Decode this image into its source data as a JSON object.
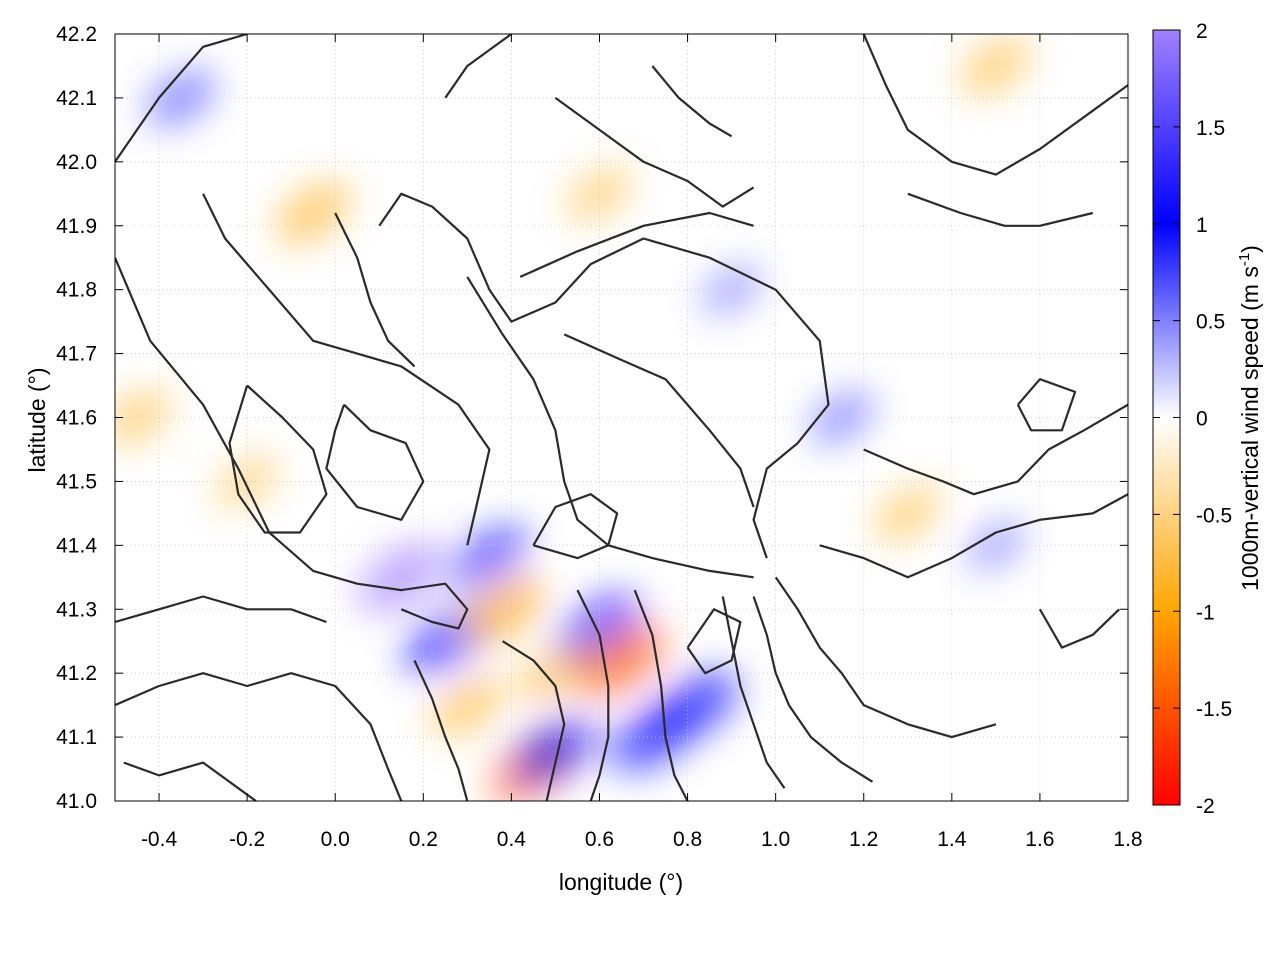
{
  "chart_data": {
    "type": "heatmap",
    "description_scope": "vertical wind speed field at 1000 m with terrain contour overlay",
    "xlabel": "longitude (°)",
    "ylabel": "latitude (°)",
    "xlim": [
      -0.5,
      1.8
    ],
    "ylim": [
      41.0,
      42.2
    ],
    "x_ticks": [
      "-0.4",
      "-0.2",
      "0.0",
      "0.2",
      "0.4",
      "0.6",
      "0.8",
      "1.0",
      "1.2",
      "1.4",
      "1.6",
      "1.8"
    ],
    "x_tick_values": [
      -0.4,
      -0.2,
      0.0,
      0.2,
      0.4,
      0.6,
      0.8,
      1.0,
      1.2,
      1.4,
      1.6,
      1.8
    ],
    "y_ticks": [
      "41.0",
      "41.1",
      "41.2",
      "41.3",
      "41.4",
      "41.5",
      "41.6",
      "41.7",
      "41.8",
      "41.9",
      "42.0",
      "42.1",
      "42.2"
    ],
    "y_tick_values": [
      41.0,
      41.1,
      41.2,
      41.3,
      41.4,
      41.5,
      41.6,
      41.7,
      41.8,
      41.9,
      42.0,
      42.1,
      42.2
    ],
    "grid": true,
    "colorbar": {
      "label_main": "1000m-vertical wind speed (m s",
      "label_sup": "-1",
      "label_end": ")",
      "range": [
        -2,
        2
      ],
      "ticks": [
        "-2",
        "-1.5",
        "-1",
        "-0.5",
        "0",
        "0.5",
        "1",
        "1.5",
        "2"
      ],
      "tick_values": [
        -2,
        -1.5,
        -1,
        -0.5,
        0,
        0.5,
        1,
        1.5,
        2
      ],
      "colors": {
        "-2": "#ff0000",
        "-1": "#ffa500",
        "0": "#ffffff",
        "1": "#0000ff",
        "2": "#a080ff"
      }
    },
    "features": [
      {
        "lon": 0.15,
        "lat": 41.35,
        "w": 1.5
      },
      {
        "lon": 0.25,
        "lat": 41.25,
        "w": 1.3
      },
      {
        "lon": 0.35,
        "lat": 41.38,
        "w": 1.2
      },
      {
        "lon": 0.38,
        "lat": 41.3,
        "w": -1.4
      },
      {
        "lon": 0.45,
        "lat": 41.05,
        "w": -1.5
      },
      {
        "lon": 0.5,
        "lat": 41.08,
        "w": 1.3
      },
      {
        "lon": 0.6,
        "lat": 41.27,
        "w": 1.4
      },
      {
        "lon": 0.65,
        "lat": 41.22,
        "w": -1.6
      },
      {
        "lon": 0.72,
        "lat": 41.1,
        "w": 1.4
      },
      {
        "lon": 0.82,
        "lat": 41.15,
        "w": 1.4
      },
      {
        "lon": 0.3,
        "lat": 41.15,
        "w": -0.9
      },
      {
        "lon": 0.5,
        "lat": 41.2,
        "w": -0.9
      },
      {
        "lon": -0.05,
        "lat": 41.92,
        "w": -1.0
      },
      {
        "lon": -0.35,
        "lat": 42.1,
        "w": 0.7
      },
      {
        "lon": -0.2,
        "lat": 41.5,
        "w": -0.5
      },
      {
        "lon": -0.45,
        "lat": 41.6,
        "w": -0.7
      },
      {
        "lon": 0.6,
        "lat": 41.95,
        "w": -0.6
      },
      {
        "lon": 1.3,
        "lat": 41.45,
        "w": -0.7
      },
      {
        "lon": 1.5,
        "lat": 42.15,
        "w": -0.8
      },
      {
        "lon": 1.15,
        "lat": 41.6,
        "w": 0.5
      },
      {
        "lon": 1.5,
        "lat": 41.4,
        "w": 0.3
      },
      {
        "lon": 0.9,
        "lat": 41.8,
        "w": 0.3
      }
    ],
    "contours": [
      [
        [
          -0.5,
          42.0
        ],
        [
          -0.4,
          42.1
        ],
        [
          -0.3,
          42.18
        ],
        [
          -0.2,
          42.2
        ]
      ],
      [
        [
          -0.5,
          41.85
        ],
        [
          -0.42,
          41.72
        ],
        [
          -0.3,
          41.62
        ],
        [
          -0.22,
          41.52
        ],
        [
          -0.15,
          41.42
        ],
        [
          -0.05,
          41.36
        ],
        [
          0.05,
          41.34
        ],
        [
          0.15,
          41.33
        ],
        [
          0.25,
          41.34
        ],
        [
          0.3,
          41.3
        ],
        [
          0.28,
          41.27
        ],
        [
          0.22,
          41.28
        ],
        [
          0.15,
          41.3
        ]
      ],
      [
        [
          -0.3,
          41.95
        ],
        [
          -0.25,
          41.88
        ],
        [
          -0.15,
          41.8
        ],
        [
          -0.05,
          41.72
        ],
        [
          0.05,
          41.7
        ],
        [
          0.15,
          41.68
        ],
        [
          0.28,
          41.62
        ],
        [
          0.35,
          41.55
        ],
        [
          0.32,
          41.46
        ],
        [
          0.3,
          41.4
        ]
      ],
      [
        [
          0.0,
          41.92
        ],
        [
          0.05,
          41.85
        ],
        [
          0.08,
          41.78
        ],
        [
          0.12,
          41.72
        ],
        [
          0.18,
          41.68
        ]
      ],
      [
        [
          0.1,
          41.9
        ],
        [
          0.15,
          41.95
        ],
        [
          0.22,
          41.93
        ],
        [
          0.3,
          41.88
        ],
        [
          0.35,
          41.8
        ],
        [
          0.4,
          41.75
        ],
        [
          0.5,
          41.78
        ],
        [
          0.58,
          41.84
        ],
        [
          0.7,
          41.88
        ],
        [
          0.85,
          41.85
        ],
        [
          1.0,
          41.8
        ],
        [
          1.1,
          41.72
        ],
        [
          1.12,
          41.62
        ],
        [
          1.05,
          41.56
        ],
        [
          0.98,
          41.52
        ],
        [
          0.95,
          41.44
        ],
        [
          0.98,
          41.38
        ]
      ],
      [
        [
          0.42,
          41.82
        ],
        [
          0.55,
          41.86
        ],
        [
          0.7,
          41.9
        ],
        [
          0.85,
          41.92
        ],
        [
          0.95,
          41.9
        ]
      ],
      [
        [
          0.3,
          41.82
        ],
        [
          0.38,
          41.73
        ],
        [
          0.45,
          41.66
        ],
        [
          0.5,
          41.58
        ],
        [
          0.52,
          41.5
        ],
        [
          0.55,
          41.44
        ],
        [
          0.62,
          41.4
        ],
        [
          0.72,
          41.38
        ],
        [
          0.85,
          41.36
        ],
        [
          0.95,
          41.35
        ]
      ],
      [
        [
          0.52,
          41.73
        ],
        [
          0.65,
          41.69
        ],
        [
          0.75,
          41.66
        ],
        [
          0.85,
          41.58
        ],
        [
          0.92,
          41.52
        ],
        [
          0.95,
          41.46
        ]
      ],
      [
        [
          0.25,
          42.1
        ],
        [
          0.3,
          42.15
        ],
        [
          0.4,
          42.2
        ]
      ],
      [
        [
          0.5,
          42.1
        ],
        [
          0.6,
          42.05
        ],
        [
          0.7,
          42.0
        ],
        [
          0.8,
          41.97
        ],
        [
          0.88,
          41.93
        ],
        [
          0.95,
          41.96
        ]
      ],
      [
        [
          0.72,
          42.15
        ],
        [
          0.78,
          42.1
        ],
        [
          0.85,
          42.06
        ],
        [
          0.9,
          42.04
        ]
      ],
      [
        [
          1.2,
          42.2
        ],
        [
          1.25,
          42.12
        ],
        [
          1.3,
          42.05
        ],
        [
          1.4,
          42.0
        ],
        [
          1.5,
          41.98
        ],
        [
          1.6,
          42.02
        ],
        [
          1.72,
          42.08
        ],
        [
          1.8,
          42.12
        ]
      ],
      [
        [
          1.3,
          41.95
        ],
        [
          1.42,
          41.92
        ],
        [
          1.52,
          41.9
        ],
        [
          1.6,
          41.9
        ],
        [
          1.72,
          41.92
        ]
      ],
      [
        [
          1.2,
          41.55
        ],
        [
          1.3,
          41.52
        ],
        [
          1.38,
          41.5
        ],
        [
          1.45,
          41.48
        ],
        [
          1.55,
          41.5
        ],
        [
          1.62,
          41.55
        ],
        [
          1.7,
          41.58
        ],
        [
          1.8,
          41.62
        ]
      ],
      [
        [
          1.1,
          41.4
        ],
        [
          1.2,
          41.38
        ],
        [
          1.3,
          41.35
        ],
        [
          1.4,
          41.38
        ],
        [
          1.5,
          41.42
        ],
        [
          1.6,
          41.44
        ],
        [
          1.72,
          41.45
        ],
        [
          1.8,
          41.48
        ]
      ],
      [
        [
          1.0,
          41.35
        ],
        [
          1.05,
          41.3
        ],
        [
          1.1,
          41.24
        ],
        [
          1.15,
          41.2
        ],
        [
          1.2,
          41.15
        ],
        [
          1.3,
          41.12
        ],
        [
          1.4,
          41.1
        ],
        [
          1.5,
          41.12
        ]
      ],
      [
        [
          0.95,
          41.32
        ],
        [
          0.98,
          41.26
        ],
        [
          1.0,
          41.2
        ],
        [
          1.03,
          41.15
        ],
        [
          1.08,
          41.1
        ],
        [
          1.15,
          41.06
        ],
        [
          1.22,
          41.03
        ]
      ],
      [
        [
          0.88,
          41.32
        ],
        [
          0.9,
          41.25
        ],
        [
          0.92,
          41.18
        ],
        [
          0.95,
          41.12
        ],
        [
          0.98,
          41.06
        ],
        [
          1.02,
          41.02
        ]
      ],
      [
        [
          0.68,
          41.33
        ],
        [
          0.72,
          41.26
        ],
        [
          0.74,
          41.18
        ],
        [
          0.75,
          41.1
        ],
        [
          0.77,
          41.04
        ],
        [
          0.8,
          41.0
        ]
      ],
      [
        [
          0.55,
          41.33
        ],
        [
          0.6,
          41.26
        ],
        [
          0.62,
          41.18
        ],
        [
          0.62,
          41.1
        ],
        [
          0.6,
          41.04
        ],
        [
          0.58,
          41.0
        ]
      ],
      [
        [
          0.38,
          41.25
        ],
        [
          0.45,
          41.22
        ],
        [
          0.5,
          41.18
        ],
        [
          0.52,
          41.12
        ],
        [
          0.5,
          41.06
        ],
        [
          0.48,
          41.0
        ]
      ],
      [
        [
          0.18,
          41.22
        ],
        [
          0.22,
          41.16
        ],
        [
          0.25,
          41.1
        ],
        [
          0.28,
          41.05
        ],
        [
          0.3,
          41.0
        ]
      ],
      [
        [
          -0.5,
          41.15
        ],
        [
          -0.4,
          41.18
        ],
        [
          -0.3,
          41.2
        ],
        [
          -0.2,
          41.18
        ],
        [
          -0.1,
          41.2
        ],
        [
          0.0,
          41.18
        ],
        [
          0.08,
          41.12
        ],
        [
          0.12,
          41.05
        ],
        [
          0.15,
          41.0
        ]
      ],
      [
        [
          -0.5,
          41.28
        ],
        [
          -0.4,
          41.3
        ],
        [
          -0.3,
          41.32
        ],
        [
          -0.2,
          41.3
        ],
        [
          -0.1,
          41.3
        ],
        [
          -0.02,
          41.28
        ]
      ],
      [
        [
          -0.48,
          41.06
        ],
        [
          -0.4,
          41.04
        ],
        [
          -0.3,
          41.06
        ],
        [
          -0.22,
          41.02
        ],
        [
          -0.18,
          41.0
        ]
      ],
      [
        [
          1.6,
          41.3
        ],
        [
          1.65,
          41.24
        ],
        [
          1.72,
          41.26
        ],
        [
          1.78,
          41.3
        ]
      ],
      [
        [
          1.55,
          41.62
        ],
        [
          1.6,
          41.66
        ],
        [
          1.68,
          41.64
        ],
        [
          1.65,
          41.58
        ],
        [
          1.58,
          41.58
        ],
        [
          1.55,
          41.62
        ]
      ],
      [
        [
          0.02,
          41.62
        ],
        [
          0.08,
          41.58
        ],
        [
          0.16,
          41.56
        ],
        [
          0.2,
          41.5
        ],
        [
          0.15,
          41.44
        ],
        [
          0.05,
          41.46
        ],
        [
          -0.02,
          41.52
        ],
        [
          0.0,
          41.58
        ],
        [
          0.02,
          41.62
        ]
      ],
      [
        [
          -0.2,
          41.65
        ],
        [
          -0.12,
          41.6
        ],
        [
          -0.05,
          41.55
        ],
        [
          -0.02,
          41.48
        ],
        [
          -0.08,
          41.42
        ],
        [
          -0.16,
          41.42
        ],
        [
          -0.22,
          41.48
        ],
        [
          -0.24,
          41.56
        ],
        [
          -0.2,
          41.65
        ]
      ],
      [
        [
          0.45,
          41.4
        ],
        [
          0.5,
          41.46
        ],
        [
          0.58,
          41.48
        ],
        [
          0.64,
          41.45
        ],
        [
          0.62,
          41.4
        ],
        [
          0.55,
          41.38
        ],
        [
          0.45,
          41.4
        ]
      ],
      [
        [
          0.8,
          41.24
        ],
        [
          0.86,
          41.3
        ],
        [
          0.92,
          41.28
        ],
        [
          0.9,
          41.22
        ],
        [
          0.84,
          41.2
        ],
        [
          0.8,
          41.24
        ]
      ]
    ]
  }
}
